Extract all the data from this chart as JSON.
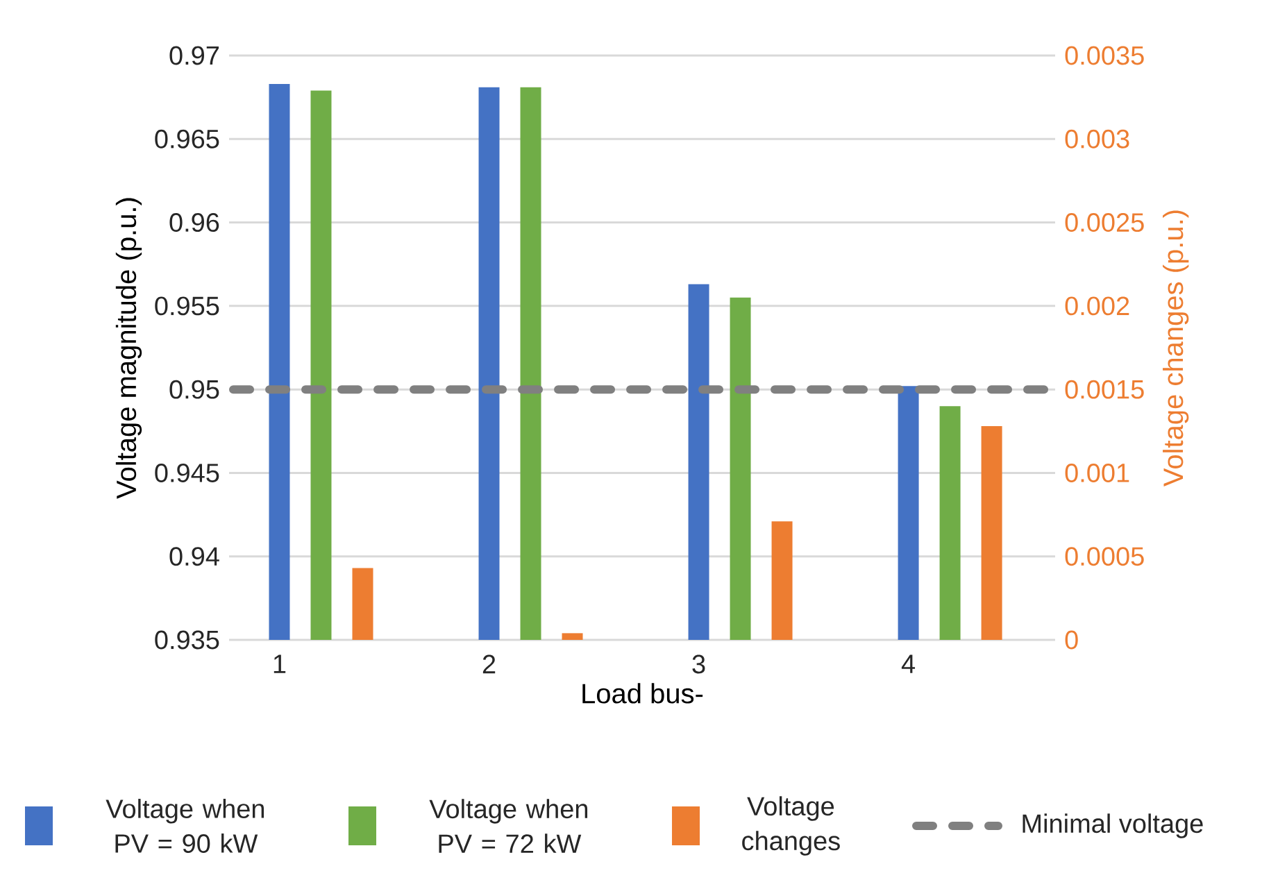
{
  "chart_data": {
    "type": "bar",
    "categories": [
      "1",
      "2",
      "3",
      "4"
    ],
    "xlabel": "Load bus-",
    "ylabel": "Voltage magnitude (p.u.)",
    "y2label": "Voltage changes (p.u.)",
    "ylim": [
      0.935,
      0.97
    ],
    "yticks": [
      0.935,
      0.94,
      0.945,
      0.95,
      0.955,
      0.96,
      0.965,
      0.97
    ],
    "y2lim": [
      0,
      0.0035
    ],
    "y2ticks": [
      0,
      0.0005,
      0.001,
      0.0015,
      0.002,
      0.0025,
      0.003,
      0.0035
    ],
    "series": [
      {
        "name": "Voltage when PV = 90 kW",
        "color": "#4472c4",
        "values": [
          0.9683,
          0.9681,
          0.9563,
          0.9502
        ]
      },
      {
        "name": "Voltage when PV = 72 kW",
        "color": "#70ad47",
        "values": [
          0.9679,
          0.9681,
          0.9555,
          0.949
        ]
      },
      {
        "name": "Voltage changes",
        "color": "#ed7d31",
        "axis": "y2",
        "values": [
          0.00043,
          4e-05,
          0.00071,
          0.00128
        ]
      }
    ],
    "ref_lines": [
      {
        "axis": "y",
        "value": 0.95,
        "label": "Minimal voltage",
        "color": "#808080",
        "line_style": "dashed"
      }
    ],
    "grid": "y",
    "legend": "bottom"
  }
}
